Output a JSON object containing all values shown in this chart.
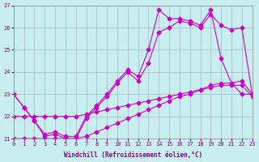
{
  "xlabel": "Windchill (Refroidissement éolien,°C)",
  "background_color": "#c8eef0",
  "grid_color": "#a0b8c0",
  "line_color": "#cc00cc",
  "xlim": [
    0,
    23
  ],
  "ylim": [
    21,
    27
  ],
  "yticks": [
    21,
    22,
    23,
    24,
    25,
    26,
    27
  ],
  "xticks": [
    0,
    1,
    2,
    3,
    4,
    5,
    6,
    7,
    8,
    9,
    10,
    11,
    12,
    13,
    14,
    15,
    16,
    17,
    18,
    19,
    20,
    21,
    22,
    23
  ],
  "series": [
    {
      "x": [
        0,
        1,
        2,
        3,
        4,
        5,
        6,
        7,
        8,
        9,
        10,
        11,
        12,
        13,
        14,
        15,
        16,
        17,
        18,
        19,
        20,
        21,
        22,
        23
      ],
      "y": [
        23.0,
        22.4,
        21.8,
        21.1,
        21.2,
        21.0,
        21.0,
        21.9,
        22.4,
        22.9,
        23.5,
        24.0,
        23.6,
        24.4,
        25.8,
        26.0,
        26.3,
        26.2,
        26.0,
        26.6,
        26.1,
        25.9,
        26.0,
        23.0
      ]
    },
    {
      "x": [
        0,
        1,
        2,
        3,
        4,
        5,
        6,
        7,
        8,
        9,
        10,
        11,
        12,
        13,
        14,
        15,
        16,
        17,
        18,
        19,
        20,
        21,
        22,
        23
      ],
      "y": [
        23.0,
        22.4,
        21.8,
        21.2,
        21.3,
        21.1,
        21.1,
        22.0,
        22.5,
        23.0,
        23.6,
        24.1,
        23.8,
        25.0,
        26.8,
        26.4,
        26.4,
        26.3,
        26.1,
        26.8,
        24.6,
        23.5,
        23.0,
        23.0
      ]
    },
    {
      "x": [
        0,
        1,
        2,
        3,
        4,
        5,
        6,
        7,
        8,
        9,
        10,
        11,
        12,
        13,
        14,
        15,
        16,
        17,
        18,
        19,
        20,
        21,
        22,
        23
      ],
      "y": [
        22.0,
        22.0,
        22.0,
        22.0,
        22.0,
        22.0,
        22.0,
        22.1,
        22.2,
        22.3,
        22.4,
        22.5,
        22.6,
        22.7,
        22.8,
        22.9,
        23.0,
        23.1,
        23.2,
        23.4,
        23.5,
        23.5,
        23.6,
        23.0
      ]
    },
    {
      "x": [
        0,
        1,
        2,
        3,
        4,
        5,
        6,
        7,
        8,
        9,
        10,
        11,
        12,
        13,
        14,
        15,
        16,
        17,
        18,
        19,
        20,
        21,
        22,
        23
      ],
      "y": [
        21.0,
        21.0,
        21.0,
        21.0,
        21.0,
        21.0,
        21.0,
        21.1,
        21.3,
        21.5,
        21.7,
        21.9,
        22.1,
        22.3,
        22.5,
        22.7,
        22.9,
        23.0,
        23.2,
        23.3,
        23.4,
        23.4,
        23.4,
        22.9
      ]
    }
  ]
}
